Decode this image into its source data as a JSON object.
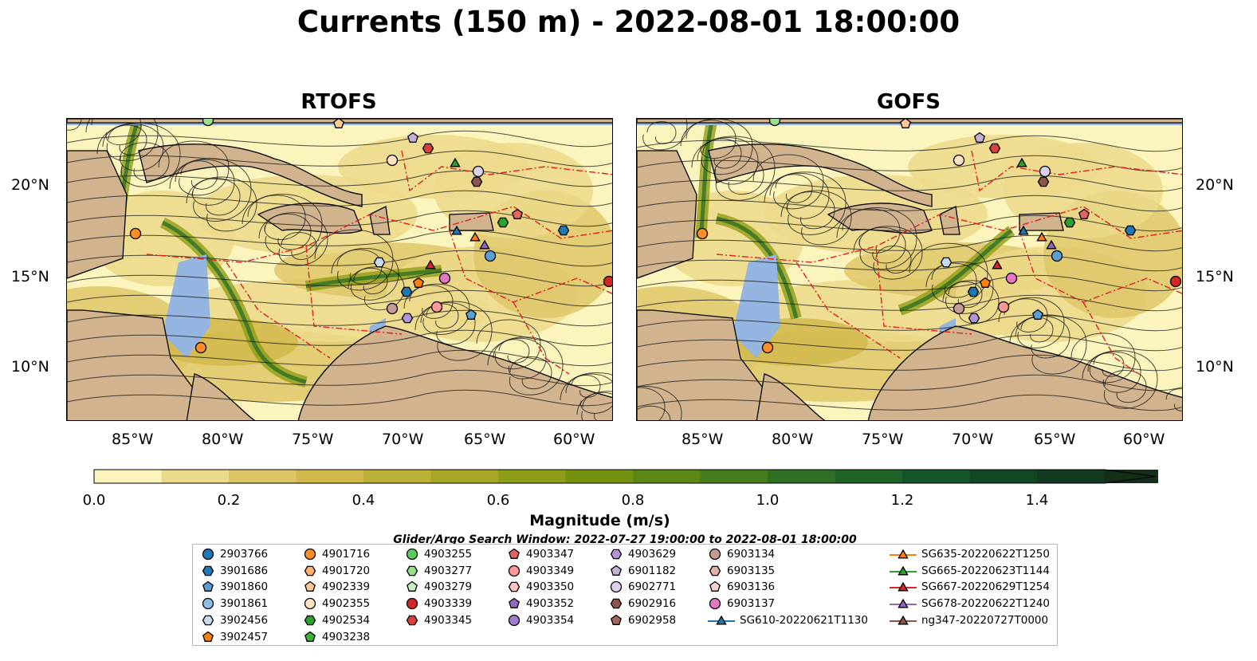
{
  "title": "Currents (150 m) - 2022-08-01 18:00:00",
  "panels": [
    {
      "title": "RTOFS"
    },
    {
      "title": "GOFS"
    }
  ],
  "lon_ticks": [
    "85°W",
    "80°W",
    "75°W",
    "70°W",
    "65°W",
    "60°W"
  ],
  "lat_ticks": [
    "20°N",
    "15°N",
    "10°N"
  ],
  "colorbar": {
    "title": "Magnitude (m/s)",
    "ticks": [
      "0.0",
      "0.2",
      "0.4",
      "0.6",
      "0.8",
      "1.0",
      "1.2",
      "1.4"
    ],
    "colors": [
      "#fbf5bd",
      "#ecd98b",
      "#dec568",
      "#d2b94c",
      "#bdb038",
      "#a8a626",
      "#8f9d18",
      "#74920f",
      "#5c8714",
      "#457c1c",
      "#2f7024",
      "#1f6328",
      "#15552a",
      "#124726",
      "#133a20",
      "#142e19"
    ]
  },
  "search_window": "Glider/Argo Search Window: 2022-07-27 19:00:00 to 2022-08-01 18:00:00",
  "legend": {
    "columns": [
      [
        {
          "label": "2903766",
          "marker": "circle",
          "color": "#1f77b4"
        },
        {
          "label": "3901686",
          "marker": "hexagon",
          "color": "#1f77b4"
        },
        {
          "label": "3901860",
          "marker": "pentagon",
          "color": "#5a9fd4"
        },
        {
          "label": "3901861",
          "marker": "circle",
          "color": "#8fbce6"
        },
        {
          "label": "3902456",
          "marker": "hexagon",
          "color": "#c6dbef"
        },
        {
          "label": "3902457",
          "marker": "pentagon",
          "color": "#ff7f0e"
        }
      ],
      [
        {
          "label": "4901716",
          "marker": "circle",
          "color": "#ff8c2a"
        },
        {
          "label": "4901720",
          "marker": "hexagon",
          "color": "#ffb070"
        },
        {
          "label": "4902339",
          "marker": "pentagon",
          "color": "#ffc896"
        },
        {
          "label": "4902355",
          "marker": "circle",
          "color": "#ffe2c4"
        },
        {
          "label": "4902534",
          "marker": "hexagon",
          "color": "#2ca02c"
        },
        {
          "label": "4903238",
          "marker": "pentagon",
          "color": "#3cb43c"
        }
      ],
      [
        {
          "label": "4903255",
          "marker": "circle",
          "color": "#5ec95e"
        },
        {
          "label": "4903277",
          "marker": "hexagon",
          "color": "#98df8a"
        },
        {
          "label": "4903279",
          "marker": "pentagon",
          "color": "#c7efc0"
        },
        {
          "label": "4903339",
          "marker": "circle",
          "color": "#d62728"
        },
        {
          "label": "4903345",
          "marker": "hexagon",
          "color": "#d9403d"
        }
      ],
      [
        {
          "label": "4903347",
          "marker": "pentagon",
          "color": "#e36560"
        },
        {
          "label": "4903349",
          "marker": "circle",
          "color": "#ff9896"
        },
        {
          "label": "4903350",
          "marker": "hexagon",
          "color": "#ffc4c0"
        },
        {
          "label": "4903352",
          "marker": "pentagon",
          "color": "#9467bd"
        },
        {
          "label": "4903354",
          "marker": "circle",
          "color": "#a07ccb"
        }
      ],
      [
        {
          "label": "4903629",
          "marker": "hexagon",
          "color": "#b494d8"
        },
        {
          "label": "6901182",
          "marker": "pentagon",
          "color": "#c5b0d5"
        },
        {
          "label": "6902771",
          "marker": "circle",
          "color": "#ddd0ea"
        },
        {
          "label": "6902916",
          "marker": "hexagon",
          "color": "#8c564b"
        },
        {
          "label": "6902958",
          "marker": "pentagon",
          "color": "#a0695c"
        }
      ],
      [
        {
          "label": "6903134",
          "marker": "circle",
          "color": "#c49c94"
        },
        {
          "label": "6903135",
          "marker": "hexagon",
          "color": "#e0b0a8"
        },
        {
          "label": "6903136",
          "marker": "pentagon",
          "color": "#f3d3cc"
        },
        {
          "label": "6903137",
          "marker": "circle",
          "color": "#e377c2"
        },
        {
          "label": "SG610-20220621T1130",
          "marker": "triangle",
          "color": "#1f77b4"
        }
      ],
      [
        {
          "label": "SG635-20220622T1250",
          "marker": "triangle",
          "color": "#ff7f0e"
        },
        {
          "label": "SG665-20220623T1144",
          "marker": "triangle",
          "color": "#2ca02c"
        },
        {
          "label": "SG667-20220629T1254",
          "marker": "triangle",
          "color": "#d62728"
        },
        {
          "label": "SG678-20220622T1240",
          "marker": "triangle",
          "color": "#9467bd"
        },
        {
          "label": "ng347-20220727T0000",
          "marker": "triangle",
          "color": "#8c564b"
        }
      ]
    ]
  }
}
